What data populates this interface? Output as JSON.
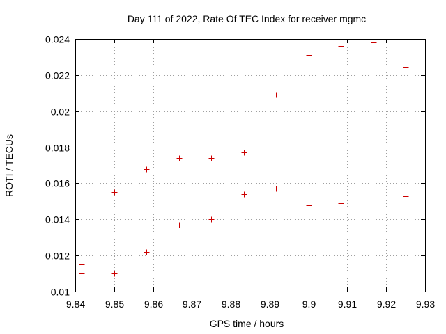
{
  "chart_data": {
    "type": "scatter",
    "title": "Day 111 of 2022, Rate Of TEC Index for receiver mgmc",
    "xlabel": "GPS time / hours",
    "ylabel": "ROTI / TECUs",
    "xlim": [
      9.84,
      9.93
    ],
    "ylim": [
      0.01,
      0.024
    ],
    "grid": true,
    "marker": "+",
    "marker_color": "#cc0000",
    "x_ticks": [
      9.84,
      9.85,
      9.86,
      9.87,
      9.88,
      9.89,
      9.9,
      9.91,
      9.92,
      9.93
    ],
    "x_tick_labels": [
      "9.84",
      "9.85",
      "9.86",
      "9.87",
      "9.88",
      "9.89",
      "9.9",
      "9.91",
      "9.92",
      "9.93"
    ],
    "y_ticks": [
      0.01,
      0.012,
      0.014,
      0.016,
      0.018,
      0.02,
      0.022,
      0.024
    ],
    "y_tick_labels": [
      "0.01",
      "0.012",
      "0.014",
      "0.016",
      "0.018",
      "0.02",
      "0.022",
      "0.024"
    ],
    "series": [
      {
        "name": "ROTI",
        "points": [
          {
            "x": 9.8417,
            "y": 0.0115
          },
          {
            "x": 9.8417,
            "y": 0.011
          },
          {
            "x": 9.85,
            "y": 0.0155
          },
          {
            "x": 9.85,
            "y": 0.011
          },
          {
            "x": 9.8583,
            "y": 0.0168
          },
          {
            "x": 9.8583,
            "y": 0.0122
          },
          {
            "x": 9.8667,
            "y": 0.0174
          },
          {
            "x": 9.8667,
            "y": 0.0137
          },
          {
            "x": 9.875,
            "y": 0.0174
          },
          {
            "x": 9.875,
            "y": 0.014
          },
          {
            "x": 9.8833,
            "y": 0.0177
          },
          {
            "x": 9.8833,
            "y": 0.0154
          },
          {
            "x": 9.8917,
            "y": 0.0209
          },
          {
            "x": 9.8917,
            "y": 0.0157
          },
          {
            "x": 9.9,
            "y": 0.0231
          },
          {
            "x": 9.9,
            "y": 0.0148
          },
          {
            "x": 9.9083,
            "y": 0.0236
          },
          {
            "x": 9.9083,
            "y": 0.0149
          },
          {
            "x": 9.9167,
            "y": 0.0238
          },
          {
            "x": 9.9167,
            "y": 0.0156
          },
          {
            "x": 9.925,
            "y": 0.0224
          },
          {
            "x": 9.925,
            "y": 0.0153
          }
        ]
      }
    ]
  }
}
